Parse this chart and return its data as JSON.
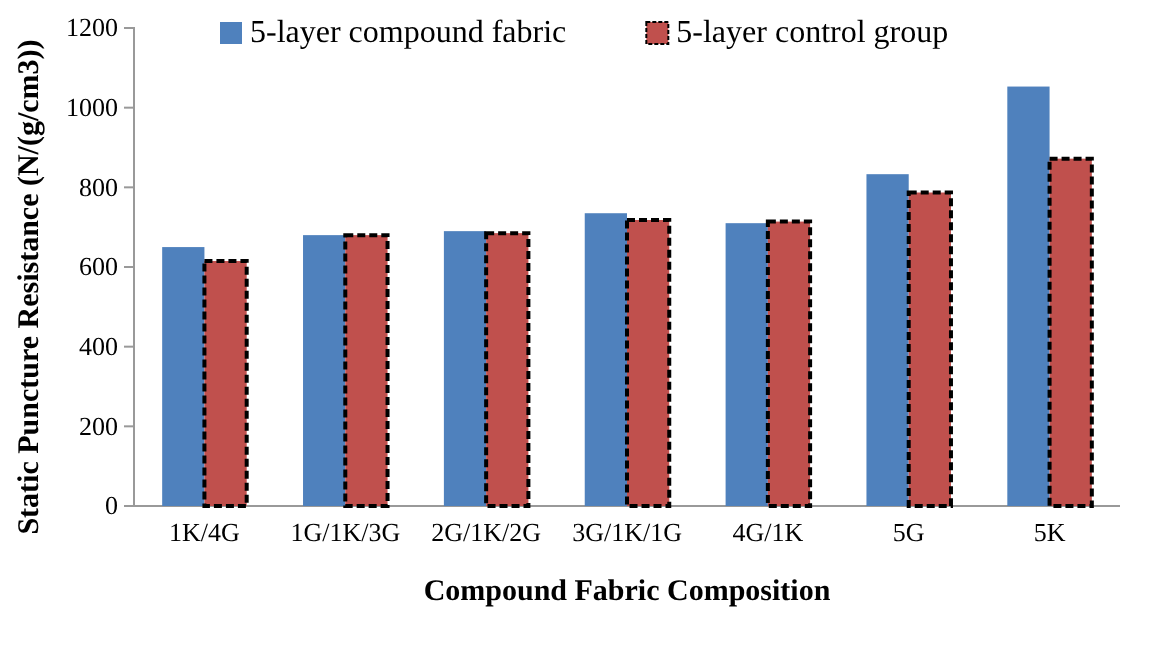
{
  "chart_data": {
    "type": "bar",
    "xlabel": "Compound Fabric Composition",
    "ylabel": "Static Puncture Resistance (N/(g/cm3))",
    "categories": [
      "1K/4G",
      "1G/1K/3G",
      "2G/1K/2G",
      "3G/1K/1G",
      "4G/1K",
      "5G",
      "5K"
    ],
    "series": [
      {
        "name": "5-layer compound fabric",
        "color": "#4f81bd",
        "values": [
          650,
          680,
          690,
          735,
          710,
          833,
          1053
        ]
      },
      {
        "name": "5-layer control group",
        "color": "#c0504d",
        "values": [
          615,
          680,
          685,
          718,
          714,
          787,
          872
        ]
      }
    ],
    "ylim": [
      0,
      1200
    ],
    "yticks": [
      0,
      200,
      400,
      600,
      800,
      1000,
      1200
    ],
    "legend": "top",
    "grid": false
  }
}
